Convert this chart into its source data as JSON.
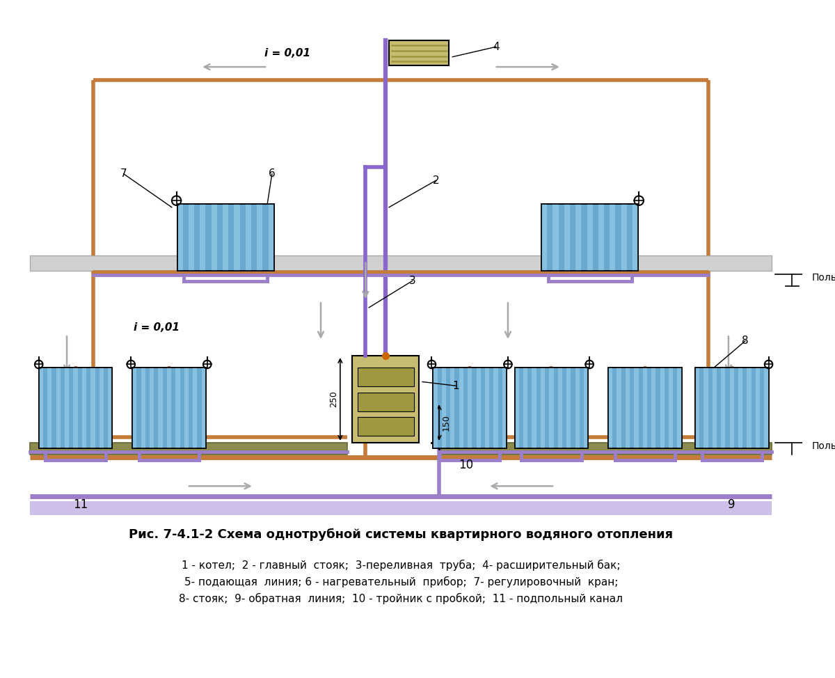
{
  "bg": "white",
  "supply_color": "#c47c3a",
  "return_color": "#9b7fc8",
  "stoak_color": "#8866cc",
  "floor_slab_color": "#8b8b50",
  "floor_slab_edge": "#666633",
  "underground_fill": "#ccc0e8",
  "ceiling_color": "#d0d0d0",
  "ceiling_edge": "#aaaaaa",
  "radiator_face": "#6baad0",
  "radiator_stripe": "#88c0e0",
  "boiler_face": "#c8bc70",
  "boiler_dark": "#a09840",
  "tank_face": "#c8bc70",
  "tank_dark": "#a09840",
  "arrow_color": "#aaaaaa",
  "title": "Рис. 7-4.1-2 Схема однотрубной системы квартирного водяного отопления",
  "legend1": "1 - котел;  2 - главный  стояк;  3-переливная  труба;  4- расширительный бак;",
  "legend2": "5- подающая  линия; 6 - нагревательный  прибор;  7- регулировочный  кран;",
  "legend3": "8- стояк;  9- обратная  линия;  10 - тройник с пробкой;  11 - подпольный канал"
}
